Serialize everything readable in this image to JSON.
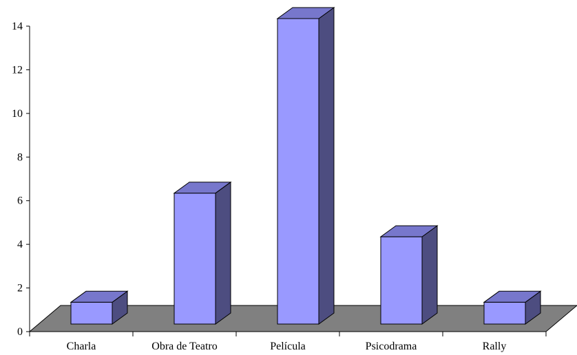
{
  "chart_data": {
    "type": "bar",
    "style": "3d-column",
    "categories": [
      "Charla",
      "Obra de Teatro",
      "Película",
      "Psicodrama",
      "Rally"
    ],
    "values": [
      1,
      6,
      14,
      4,
      1
    ],
    "title": "",
    "xlabel": "",
    "ylabel": "",
    "ylim": [
      0,
      14
    ],
    "yticks": [
      0,
      2,
      4,
      6,
      8,
      10,
      12,
      14
    ],
    "grid": false,
    "legend": "none",
    "colors": {
      "bar_front": "#9999ff",
      "bar_top": "#7777cc",
      "bar_side": "#4d4d80",
      "floor": "#808080",
      "axis": "#000000"
    }
  }
}
